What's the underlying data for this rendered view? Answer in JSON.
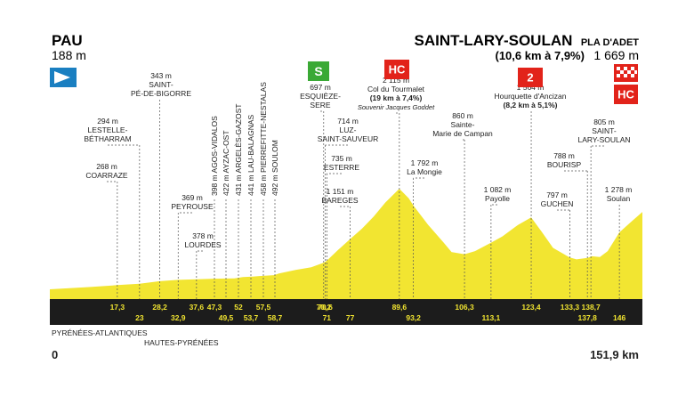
{
  "start": {
    "name": "PAU",
    "altitude": "188 m"
  },
  "finish": {
    "name": "SAINT-LARY-SOULAN",
    "sub": "PLA D'ADET",
    "climb": "(10,6 km à 7,9%)",
    "altitude": "1 669 m"
  },
  "axis": {
    "start_km": "0",
    "end_km": "151,9 km"
  },
  "regions": [
    "PYRÉNÉES-ATLANTIQUES",
    "HAUTES-PYRÉNÉES"
  ],
  "badges": {
    "sprint": "S",
    "hc": "HC",
    "cat2": "2"
  },
  "colors": {
    "profile": "#f2e531",
    "bar": "#1c1c1c",
    "accent_red": "#e2231a",
    "sprint_green": "#3aa935",
    "start_blue": "#1a7fc1"
  },
  "chart_data": {
    "type": "area",
    "xlim": [
      0,
      151.9
    ],
    "ylim": [
      0,
      2115
    ],
    "profile": {
      "x": [
        0,
        10,
        17.3,
        23,
        28.2,
        32.9,
        37.6,
        42,
        47.3,
        49.5,
        52,
        53.7,
        57.5,
        58.7,
        63,
        67,
        70.2,
        70.6,
        71,
        74,
        77,
        80,
        83,
        86,
        89.6,
        92,
        93.2,
        97,
        101,
        103,
        106.3,
        109,
        113.1,
        116,
        120,
        123.4,
        126,
        129,
        133.3,
        135,
        137.8,
        139,
        141,
        143,
        146,
        149,
        151.9
      ],
      "y": [
        188,
        230,
        268,
        294,
        343,
        369,
        378,
        390,
        398,
        422,
        431,
        441,
        458,
        492,
        560,
        610,
        697,
        714,
        735,
        950,
        1151,
        1350,
        1580,
        1850,
        2115,
        1930,
        1792,
        1420,
        1080,
        900,
        860,
        920,
        1082,
        1200,
        1420,
        1564,
        1300,
        980,
        797,
        760,
        788,
        820,
        805,
        920,
        1278,
        1480,
        1669
      ]
    },
    "waypoints": [
      {
        "km": "17,3",
        "alt": "268 m",
        "label": "COARRAZE"
      },
      {
        "km": "23",
        "alt": "294 m",
        "label": "LESTELLE-BÉTHARRAM"
      },
      {
        "km": "28,2",
        "alt": "343 m",
        "label": "SAINT-PÉ-DE-BIGORRE"
      },
      {
        "km": "32,9",
        "alt": "369 m",
        "label": "PEYROUSE"
      },
      {
        "km": "37,6",
        "alt": "378 m",
        "label": "LOURDES"
      },
      {
        "km": "47,3",
        "alt": "398 m",
        "label": "AGOS-VIDALOS"
      },
      {
        "km": "49,5",
        "alt": "422 m",
        "label": "AYZAC-OST"
      },
      {
        "km": "52",
        "alt": "431 m",
        "label": "ARGELÈS-GAZOST"
      },
      {
        "km": "53,7",
        "alt": "441 m",
        "label": "LAU-BALAGNAS"
      },
      {
        "km": "57,5",
        "alt": "458 m",
        "label": "PIERREFITTE-NESTALAS"
      },
      {
        "km": "58,7",
        "alt": "492 m",
        "label": "SOULOM"
      },
      {
        "km": "70,2",
        "alt": "697 m",
        "label": "ESQUIÈZE-SERE"
      },
      {
        "km": "70,6",
        "alt": "714 m",
        "label": "LUZ-SAINT-SAUVEUR"
      },
      {
        "km": "71",
        "alt": "735 m",
        "label": "ESTERRE"
      },
      {
        "km": "77",
        "alt": "1 151 m",
        "label": "BAREGES"
      },
      {
        "km": "89,6",
        "alt": "2 115 m",
        "label": "Col du Tourmalet",
        "climb": "(19 km à 7,4%)",
        "note": "Souvenir Jacques Goddet"
      },
      {
        "km": "93,2",
        "alt": "1 792 m",
        "label": "La Mongie"
      },
      {
        "km": "106,3",
        "alt": "860 m",
        "label": "Sainte-Marie de Campan"
      },
      {
        "km": "113,1",
        "alt": "1 082 m",
        "label": "Payolle"
      },
      {
        "km": "123,4",
        "alt": "1 564 m",
        "label": "Hourquette d'Ancizan",
        "climb": "(8,2 km à 5,1%)"
      },
      {
        "km": "133,3",
        "alt": "797 m",
        "label": "GUCHEN"
      },
      {
        "km": "137,8",
        "alt": "788 m",
        "label": "BOURISP"
      },
      {
        "km": "138,7",
        "alt": "805 m",
        "label": "SAINT-LARY-SOULAN"
      },
      {
        "km": "146",
        "alt": "1 278 m",
        "label": "Soulan"
      }
    ]
  }
}
